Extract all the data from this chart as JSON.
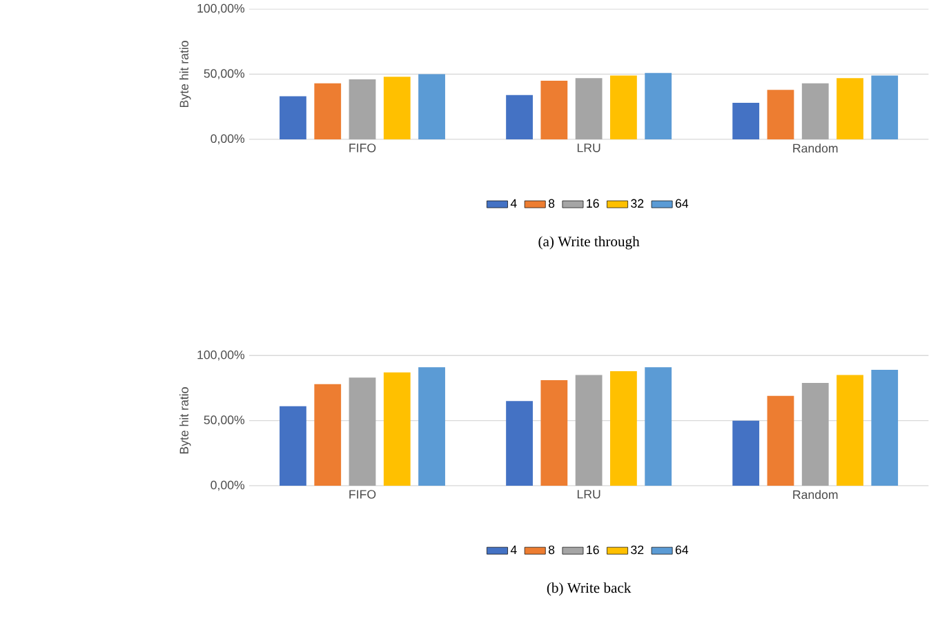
{
  "chart_data": [
    {
      "type": "bar",
      "title": "(a) Write through",
      "ylabel": "Byte hit ratio",
      "categories": [
        "FIFO",
        "LRU",
        "Random"
      ],
      "series": [
        {
          "name": "4",
          "color": "#4472c4",
          "values": [
            33,
            34,
            28
          ]
        },
        {
          "name": "8",
          "color": "#ed7d31",
          "values": [
            43,
            45,
            38
          ]
        },
        {
          "name": "16",
          "color": "#a5a5a5",
          "values": [
            46,
            47,
            43
          ]
        },
        {
          "name": "32",
          "color": "#ffc000",
          "values": [
            48,
            49,
            47
          ]
        },
        {
          "name": "64",
          "color": "#5b9bd5",
          "values": [
            50,
            51,
            49
          ]
        }
      ],
      "ylim": [
        0,
        100
      ],
      "yticks": [
        {
          "value": 0,
          "label": "0,00%"
        },
        {
          "value": 50,
          "label": "50,00%"
        },
        {
          "value": 100,
          "label": "100,00%"
        }
      ],
      "grid": "y",
      "legend": "bottom"
    },
    {
      "type": "bar",
      "title": "(b) Write back",
      "ylabel": "Byte hit ratio",
      "categories": [
        "FIFO",
        "LRU",
        "Random"
      ],
      "series": [
        {
          "name": "4",
          "color": "#4472c4",
          "values": [
            61,
            65,
            50
          ]
        },
        {
          "name": "8",
          "color": "#ed7d31",
          "values": [
            78,
            81,
            69
          ]
        },
        {
          "name": "16",
          "color": "#a5a5a5",
          "values": [
            83,
            85,
            79
          ]
        },
        {
          "name": "32",
          "color": "#ffc000",
          "values": [
            87,
            88,
            85
          ]
        },
        {
          "name": "64",
          "color": "#5b9bd5",
          "values": [
            91,
            91,
            89
          ]
        }
      ],
      "ylim": [
        0,
        100
      ],
      "yticks": [
        {
          "value": 0,
          "label": "0,00%"
        },
        {
          "value": 50,
          "label": "50,00%"
        },
        {
          "value": 100,
          "label": "100,00%"
        }
      ],
      "grid": "y",
      "legend": "bottom"
    }
  ]
}
